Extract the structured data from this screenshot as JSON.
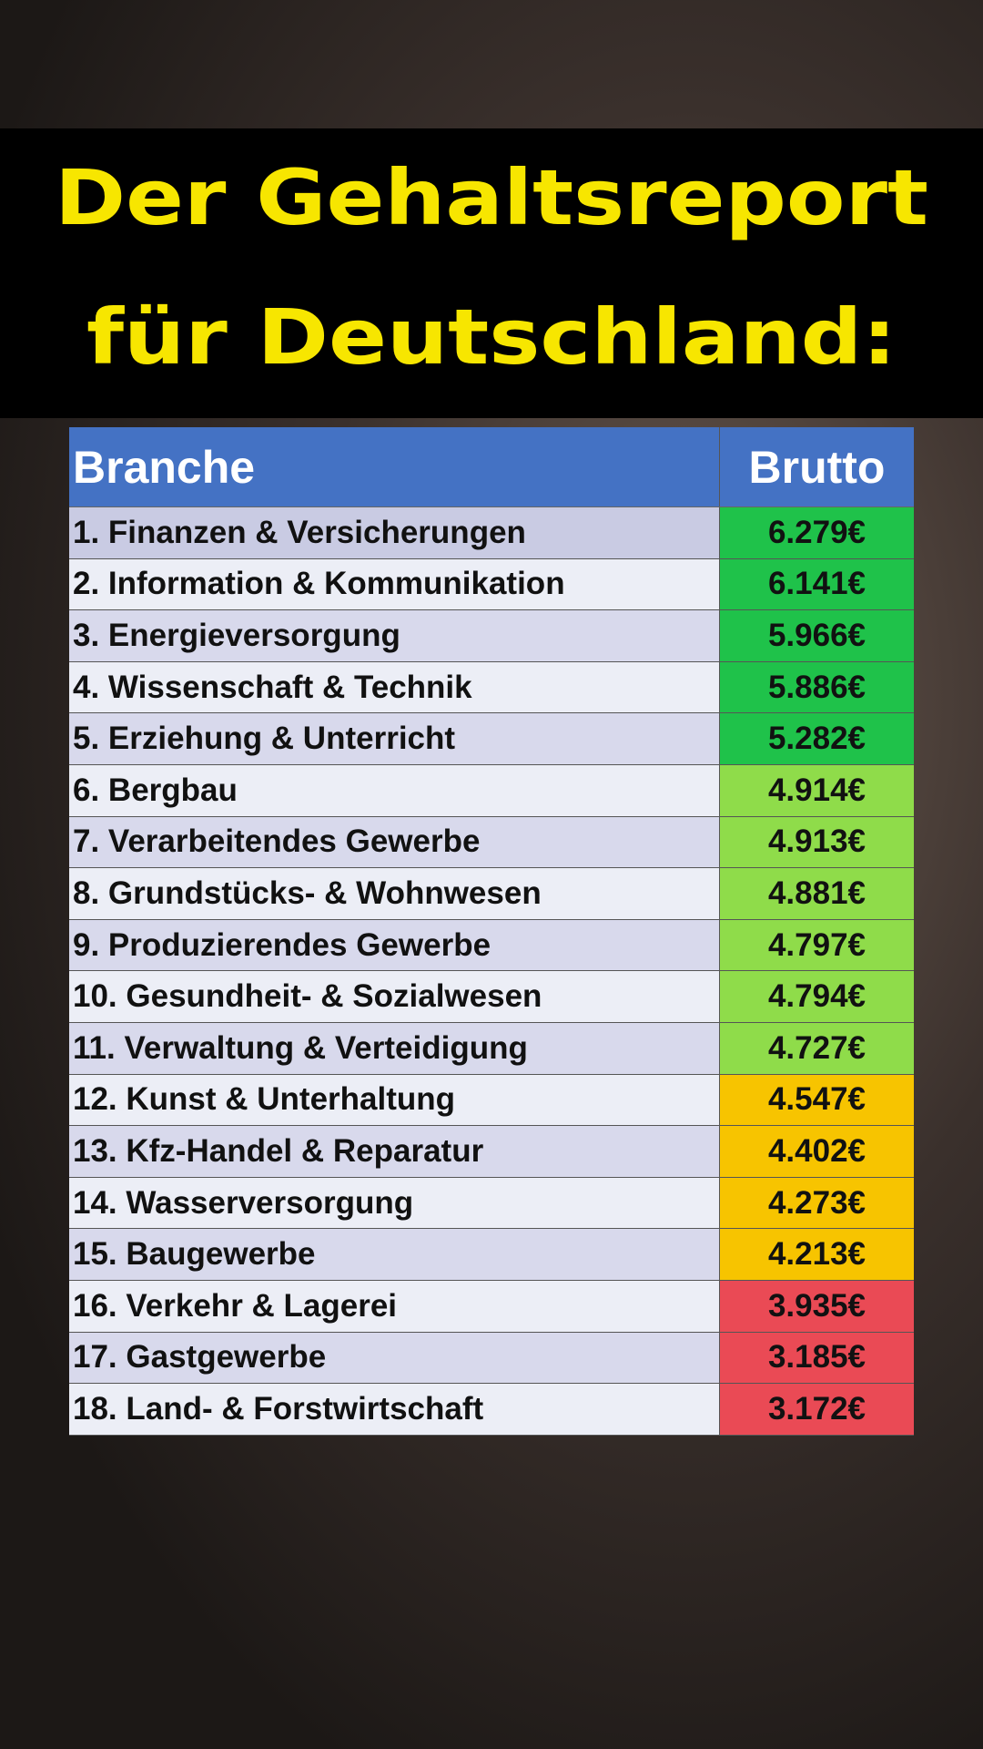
{
  "title": {
    "lines": [
      "Der Gehaltsreport",
      "für Deutschland:"
    ]
  },
  "table": {
    "header": [
      "Branche",
      "Brutto"
    ],
    "rows": [
      {
        "branche": "1. Finanzen & Versicherungen",
        "brutto": "6.279€",
        "color": "#1fc24a"
      },
      {
        "branche": "2. Information & Kommunikation",
        "brutto": "6.141€",
        "color": "#1fc24a"
      },
      {
        "branche": "3. Energieversorgung",
        "brutto": "5.966€",
        "color": "#1fc24a"
      },
      {
        "branche": "4. Wissenschaft & Technik",
        "brutto": "5.886€",
        "color": "#1fc24a"
      },
      {
        "branche": "5. Erziehung & Unterricht",
        "brutto": "5.282€",
        "color": "#1fc24a"
      },
      {
        "branche": "6. Bergbau",
        "brutto": "4.914€",
        "color": "#8fdc4a"
      },
      {
        "branche": "7. Verarbeitendes Gewerbe",
        "brutto": "4.913€",
        "color": "#8fdc4a"
      },
      {
        "branche": "8. Grundstücks- & Wohnwesen",
        "brutto": "4.881€",
        "color": "#8fdc4a"
      },
      {
        "branche": "9. Produzierendes Gewerbe",
        "brutto": "4.797€",
        "color": "#8fdc4a"
      },
      {
        "branche": "10. Gesundheit- & Sozialwesen",
        "brutto": "4.794€",
        "color": "#8fdc4a"
      },
      {
        "branche": "11. Verwaltung & Verteidigung",
        "brutto": "4.727€",
        "color": "#8fdc4a"
      },
      {
        "branche": "12. Kunst & Unterhaltung",
        "brutto": "4.547€",
        "color": "#f7c400"
      },
      {
        "branche": "13. Kfz-Handel & Reparatur",
        "brutto": "4.402€",
        "color": "#f7c400"
      },
      {
        "branche": "14. Wasserversorgung",
        "brutto": "4.273€",
        "color": "#f7c400"
      },
      {
        "branche": "15. Baugewerbe",
        "brutto": "4.213€",
        "color": "#f7c400"
      },
      {
        "branche": "16. Verkehr & Lagerei",
        "brutto": "3.935€",
        "color": "#ea4a55"
      },
      {
        "branche": "17. Gastgewerbe",
        "brutto": "3.185€",
        "color": "#ea4a55"
      },
      {
        "branche": "18. Land- & Forstwirtschaft",
        "brutto": "3.172€",
        "color": "#ea4a55"
      }
    ]
  }
}
